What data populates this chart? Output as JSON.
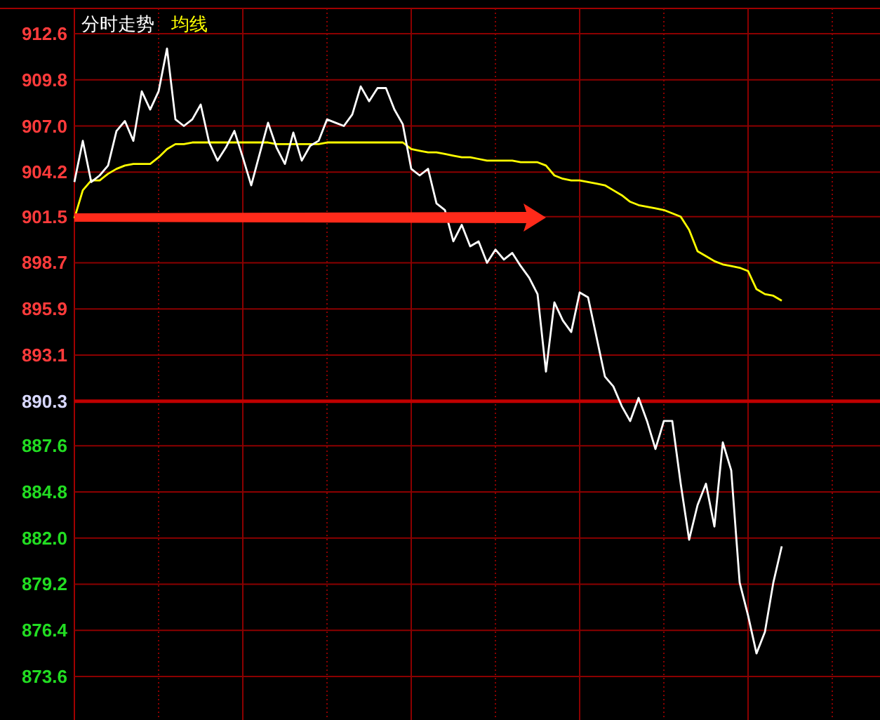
{
  "chart_data": {
    "type": "line",
    "title": "分时走势",
    "legend": "top left",
    "grid": true,
    "categories": [
      null,
      null,
      null,
      null,
      null,
      null,
      null,
      null,
      null,
      null,
      null,
      null,
      null,
      null,
      null,
      null,
      null,
      null,
      null,
      null,
      null,
      null,
      null,
      null,
      null,
      null,
      null,
      null,
      null,
      null,
      null,
      null,
      null,
      null,
      null,
      null,
      null,
      null,
      null,
      null,
      null,
      null,
      null,
      null,
      null,
      null,
      null,
      null,
      null,
      null,
      null,
      null,
      null,
      null,
      null,
      null,
      null,
      null,
      null,
      null,
      null,
      null,
      null,
      null,
      null,
      null,
      null,
      null,
      null,
      null,
      null,
      null,
      null,
      null,
      null,
      null,
      null,
      null,
      null,
      null,
      null,
      null,
      null,
      null,
      null
    ],
    "ylim": [
      873.6,
      912.6
    ],
    "yticks": [
      {
        "value": 912.6,
        "label": "912.6"
      },
      {
        "value": 909.8,
        "label": "909.8"
      },
      {
        "value": 907.0,
        "label": "907.0"
      },
      {
        "value": 904.2,
        "label": "904.2"
      },
      {
        "value": 901.5,
        "label": "901.5"
      },
      {
        "value": 898.7,
        "label": "898.7"
      },
      {
        "value": 895.9,
        "label": "895.9"
      },
      {
        "value": 893.1,
        "label": "893.1"
      },
      {
        "value": 890.3,
        "label": "890.3"
      },
      {
        "value": 887.6,
        "label": "887.6"
      },
      {
        "value": 884.8,
        "label": "884.8"
      },
      {
        "value": 882.0,
        "label": "882.0"
      },
      {
        "value": 879.2,
        "label": "879.2"
      },
      {
        "value": 876.4,
        "label": "876.4"
      },
      {
        "value": 873.6,
        "label": "873.6"
      }
    ],
    "ref_lines": [
      {
        "axis": "y",
        "value": 890.3,
        "color": "#c00000"
      }
    ],
    "series": [
      {
        "color": "#ffffff",
        "values": [
          903.6,
          906.1,
          903.6,
          904.0,
          904.6,
          906.7,
          907.3,
          906.1,
          909.1,
          908.0,
          909.1,
          911.7,
          907.4,
          907.0,
          907.4,
          908.3,
          906.0,
          904.9,
          905.7,
          906.7,
          905.1,
          903.4,
          905.3,
          907.2,
          905.7,
          904.7,
          906.6,
          904.9,
          905.8,
          906.1,
          907.4,
          907.2,
          907.0,
          907.7,
          909.4,
          908.5,
          909.3,
          909.3,
          908.0,
          907.1,
          904.4,
          904.0,
          904.4,
          902.3,
          901.9,
          900.0,
          901.0,
          899.7,
          900.0,
          898.7,
          899.5,
          898.9,
          899.3,
          898.5,
          897.8,
          896.8,
          892.1,
          896.3,
          895.2,
          894.5,
          896.9,
          896.6,
          894.2,
          891.8,
          891.2,
          890.0,
          889.1,
          890.5,
          889.1,
          887.4,
          889.1,
          889.1,
          885.3,
          881.9,
          884.0,
          885.3,
          882.7,
          887.8,
          886.1,
          879.3,
          877.3,
          875.0,
          876.3,
          879.3,
          881.5
        ]
      },
      {
        "name": "均线",
        "color": "#ffff00",
        "values": [
          901.4,
          903.1,
          903.7,
          903.7,
          904.1,
          904.4,
          904.6,
          904.7,
          904.7,
          904.7,
          905.1,
          905.6,
          905.9,
          905.9,
          906.0,
          906.0,
          906.0,
          906.0,
          906.0,
          906.0,
          906.0,
          906.0,
          906.0,
          906.0,
          905.9,
          905.9,
          905.9,
          905.9,
          905.9,
          905.9,
          906.0,
          906.0,
          906.0,
          906.0,
          906.0,
          906.0,
          906.0,
          906.0,
          906.0,
          906.0,
          905.6,
          905.5,
          905.4,
          905.4,
          905.3,
          905.2,
          905.1,
          905.1,
          905.0,
          904.9,
          904.9,
          904.9,
          904.9,
          904.8,
          904.8,
          904.8,
          904.6,
          904.0,
          903.8,
          903.7,
          903.7,
          903.6,
          903.5,
          903.4,
          903.1,
          902.8,
          902.4,
          902.2,
          902.1,
          902.0,
          901.9,
          901.7,
          901.5,
          900.7,
          899.4,
          899.1,
          898.8,
          898.6,
          898.5,
          898.4,
          898.2,
          897.1,
          896.8,
          896.7,
          896.4
        ]
      }
    ]
  }
}
